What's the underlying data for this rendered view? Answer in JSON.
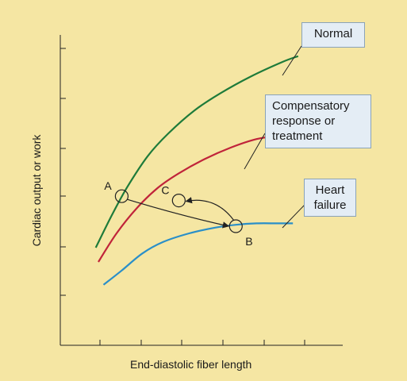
{
  "chart_data": {
    "type": "line",
    "title": "",
    "xlabel": "End-diastolic fiber length",
    "ylabel": "Cardiac output or work",
    "xlim": [
      0,
      100
    ],
    "ylim": [
      0,
      100
    ],
    "grid": false,
    "x_ticks": 6,
    "y_ticks": 6,
    "series": [
      {
        "name": "Normal",
        "color": "#1e7b3a",
        "x": [
          10,
          16,
          22,
          30,
          38,
          48,
          58,
          70,
          82,
          88
        ],
        "y": [
          30,
          41,
          51,
          62,
          70,
          78,
          84,
          90,
          95,
          97
        ]
      },
      {
        "name": "Compensatory response or treatment",
        "color": "#c0243a",
        "x": [
          11,
          18,
          26,
          34,
          42,
          52,
          62,
          72,
          80,
          88
        ],
        "y": [
          25,
          35,
          44,
          51,
          56,
          61,
          65,
          68,
          69,
          69
        ]
      },
      {
        "name": "Heart failure",
        "color": "#2a8fc8",
        "x": [
          13,
          20,
          28,
          36,
          46,
          56,
          64,
          72,
          80,
          86
        ],
        "y": [
          17,
          22,
          28,
          32,
          35,
          37,
          38,
          38.5,
          38.5,
          38.5
        ]
      }
    ],
    "points": [
      {
        "label": "A",
        "x": 20,
        "y": 48
      },
      {
        "label": "B",
        "x": 64,
        "y": 37.5
      },
      {
        "label": "C",
        "x": 42,
        "y": 46.5
      }
    ]
  }
}
